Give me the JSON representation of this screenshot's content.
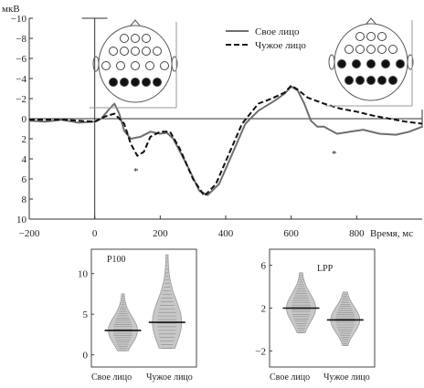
{
  "chart_data": [
    {
      "type": "line",
      "ylabel": "мкВ",
      "xlabel": "Время, мс",
      "y_inverted": true,
      "xlim": [
        -200,
        1000
      ],
      "ylim": [
        -10,
        10
      ],
      "x_ticks": [
        -200,
        0,
        200,
        400,
        600,
        800
      ],
      "y_ticks": [
        -10,
        -8,
        -6,
        -4,
        -2,
        0,
        2,
        4,
        6,
        8,
        10
      ],
      "x_tick_labels": [
        "−200",
        "0",
        "200",
        "400",
        "600",
        "800"
      ],
      "y_tick_labels": [
        "−10",
        "−8",
        "−6",
        "−4",
        "−2",
        "0",
        "2",
        "4",
        "6",
        "8",
        "10"
      ],
      "legend": "top-center",
      "series": [
        {
          "name": "Свое лицо",
          "style": "solid",
          "color": "#6e6e6e",
          "points": [
            [
              -200,
              0.2
            ],
            [
              -150,
              0.3
            ],
            [
              -100,
              0.1
            ],
            [
              -50,
              0.4
            ],
            [
              0,
              0.3
            ],
            [
              20,
              0
            ],
            [
              40,
              -0.8
            ],
            [
              60,
              -1.5
            ],
            [
              75,
              -0.5
            ],
            [
              90,
              1.2
            ],
            [
              110,
              2
            ],
            [
              140,
              1.8
            ],
            [
              170,
              1.3
            ],
            [
              200,
              1.5
            ],
            [
              220,
              1.4
            ],
            [
              240,
              2
            ],
            [
              280,
              4.5
            ],
            [
              320,
              7.2
            ],
            [
              345,
              7.6
            ],
            [
              380,
              6.5
            ],
            [
              420,
              3.5
            ],
            [
              460,
              0.5
            ],
            [
              500,
              -0.8
            ],
            [
              550,
              -1.8
            ],
            [
              580,
              -2.5
            ],
            [
              600,
              -3.2
            ],
            [
              620,
              -2.8
            ],
            [
              640,
              -1.5
            ],
            [
              660,
              0.2
            ],
            [
              680,
              0.8
            ],
            [
              700,
              0.8
            ],
            [
              740,
              1.5
            ],
            [
              780,
              1.3
            ],
            [
              820,
              1.1
            ],
            [
              870,
              1.5
            ],
            [
              920,
              1.6
            ],
            [
              960,
              1.3
            ],
            [
              1000,
              0.8
            ]
          ]
        },
        {
          "name": "Чужое лицо",
          "style": "dashed",
          "color": "#111111",
          "points": [
            [
              -200,
              0.1
            ],
            [
              -150,
              0.1
            ],
            [
              -100,
              0.1
            ],
            [
              -50,
              0.2
            ],
            [
              0,
              0.3
            ],
            [
              30,
              -0.2
            ],
            [
              60,
              -0.5
            ],
            [
              90,
              0.5
            ],
            [
              110,
              2.5
            ],
            [
              130,
              3.7
            ],
            [
              150,
              3.3
            ],
            [
              170,
              1.8
            ],
            [
              200,
              1.3
            ],
            [
              230,
              1.3
            ],
            [
              260,
              3
            ],
            [
              300,
              6
            ],
            [
              335,
              7.7
            ],
            [
              370,
              6.5
            ],
            [
              410,
              3.5
            ],
            [
              450,
              0.5
            ],
            [
              500,
              -1.5
            ],
            [
              540,
              -2
            ],
            [
              580,
              -2.6
            ],
            [
              600,
              -3.3
            ],
            [
              620,
              -2.9
            ],
            [
              650,
              -2.1
            ],
            [
              700,
              -1.5
            ],
            [
              750,
              -1
            ],
            [
              800,
              -0.7
            ],
            [
              850,
              -0.3
            ],
            [
              900,
              0
            ],
            [
              950,
              0.3
            ],
            [
              1000,
              0.5
            ]
          ]
        }
      ],
      "annotations": [
        "*",
        "*"
      ]
    },
    {
      "type": "violin",
      "title": "P100",
      "categories": [
        "Свое лицо",
        "Чужое лицо"
      ],
      "y_ticks": [
        0,
        5,
        10
      ],
      "ylim": [
        -1.5,
        13
      ],
      "medians": [
        3.0,
        4.0
      ],
      "ranges": [
        [
          0.5,
          7.5
        ],
        [
          0.8,
          12.3
        ]
      ]
    },
    {
      "type": "violin",
      "title": "LPP",
      "categories": [
        "Свое лицо",
        "Чужое лицо"
      ],
      "y_ticks": [
        -2,
        2,
        6
      ],
      "ylim": [
        -3.5,
        7.5
      ],
      "medians": [
        2.0,
        0.9
      ],
      "ranges": [
        [
          -0.3,
          5.3
        ],
        [
          -1.5,
          3.5
        ]
      ]
    }
  ]
}
